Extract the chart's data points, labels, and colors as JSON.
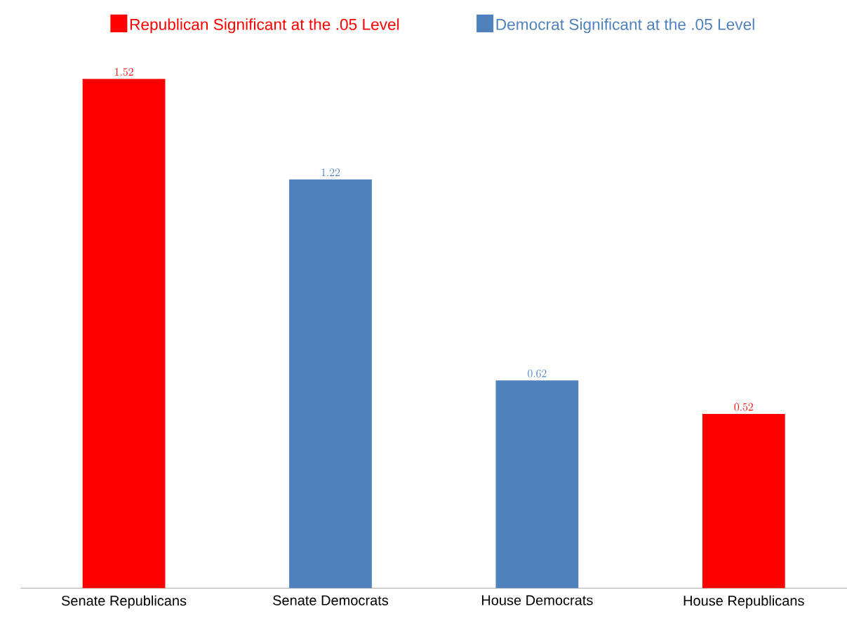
{
  "chart_data": {
    "type": "bar",
    "categories": [
      "Senate Republicans",
      "Senate Democrats",
      "House Democrats",
      "House Republicans"
    ],
    "series": [
      {
        "name": "Republican Significant at the .05 Level",
        "color": "#ff0000",
        "values": [
          1.52,
          null,
          null,
          0.52
        ]
      },
      {
        "name": "Democrat Significant at the .05 Level",
        "color": "#4f81bd",
        "values": [
          null,
          1.22,
          0.62,
          null
        ]
      }
    ],
    "data_labels": true,
    "legend": "top"
  }
}
